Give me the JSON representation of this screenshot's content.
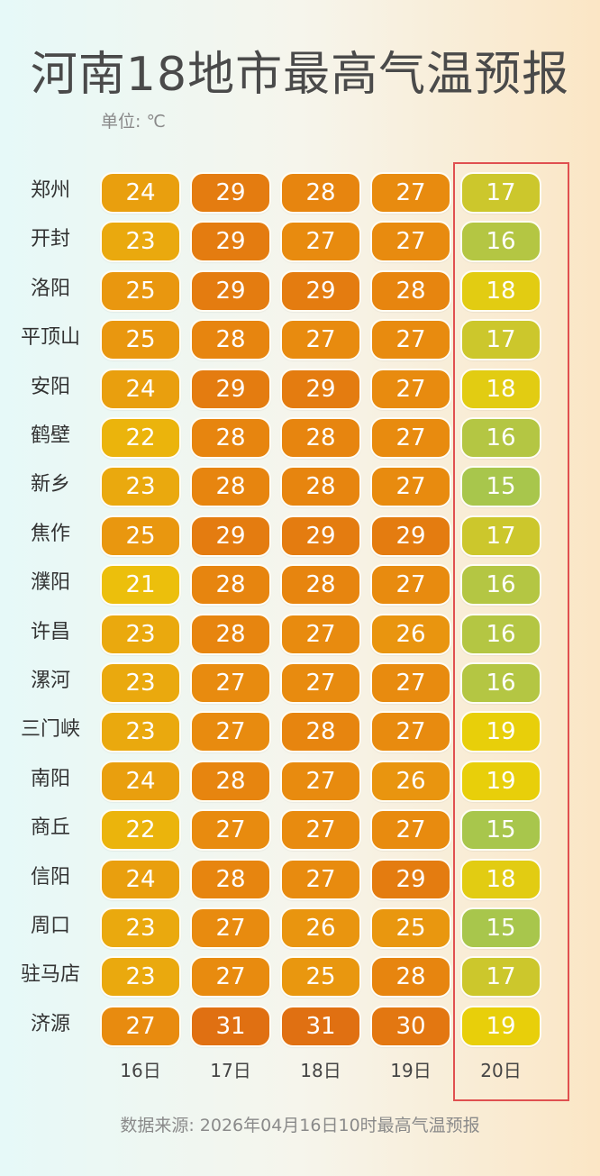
{
  "title": "河南18地市最高气温预报",
  "unit_label": "单位: ℃",
  "source": "数据来源: 2026年04月16日10时最高气温预报",
  "colors": {
    "highlight_border": "#e05050",
    "scale": {
      "15": "#a8c64c",
      "16": "#b4c643",
      "17": "#ccc72c",
      "18": "#e2cc12",
      "19": "#e8cf0a",
      "21": "#ecbf0c",
      "22": "#ebb40c",
      "23": "#eaa90e",
      "24": "#e99f0e",
      "25": "#e9970f",
      "26": "#e9950f",
      "27": "#e88b0f",
      "28": "#e7850f",
      "29": "#e47c10",
      "30": "#e37711",
      "31": "#e07012"
    }
  },
  "chart_data": {
    "type": "heatmap",
    "title": "河南18地市最高气温预报",
    "unit": "单位: ℃",
    "columns": [
      "16日",
      "17日",
      "18日",
      "19日",
      "20日"
    ],
    "highlighted_column": "20日",
    "rows": [
      {
        "city": "郑州",
        "values": [
          24,
          29,
          28,
          27,
          17
        ]
      },
      {
        "city": "开封",
        "values": [
          23,
          29,
          27,
          27,
          16
        ]
      },
      {
        "city": "洛阳",
        "values": [
          25,
          29,
          29,
          28,
          18
        ]
      },
      {
        "city": "平顶山",
        "values": [
          25,
          28,
          27,
          27,
          17
        ]
      },
      {
        "city": "安阳",
        "values": [
          24,
          29,
          29,
          27,
          18
        ]
      },
      {
        "city": "鹤壁",
        "values": [
          22,
          28,
          28,
          27,
          16
        ]
      },
      {
        "city": "新乡",
        "values": [
          23,
          28,
          28,
          27,
          15
        ]
      },
      {
        "city": "焦作",
        "values": [
          25,
          29,
          29,
          29,
          17
        ]
      },
      {
        "city": "濮阳",
        "values": [
          21,
          28,
          28,
          27,
          16
        ]
      },
      {
        "city": "许昌",
        "values": [
          23,
          28,
          27,
          26,
          16
        ]
      },
      {
        "city": "漯河",
        "values": [
          23,
          27,
          27,
          27,
          16
        ]
      },
      {
        "city": "三门峡",
        "values": [
          23,
          27,
          28,
          27,
          19
        ]
      },
      {
        "city": "南阳",
        "values": [
          24,
          28,
          27,
          26,
          19
        ]
      },
      {
        "city": "商丘",
        "values": [
          22,
          27,
          27,
          27,
          15
        ]
      },
      {
        "city": "信阳",
        "values": [
          24,
          28,
          27,
          29,
          18
        ]
      },
      {
        "city": "周口",
        "values": [
          23,
          27,
          26,
          25,
          15
        ]
      },
      {
        "city": "驻马店",
        "values": [
          23,
          27,
          25,
          28,
          17
        ]
      },
      {
        "city": "济源",
        "values": [
          27,
          31,
          31,
          30,
          19
        ]
      }
    ]
  }
}
